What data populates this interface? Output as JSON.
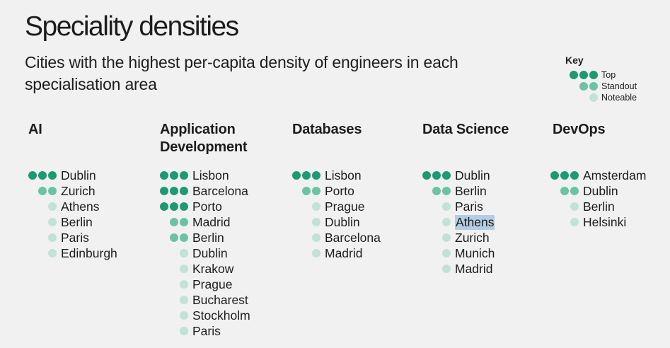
{
  "title": "Speciality densities",
  "subtitle": "Cities with the highest per-capita density of engineers in each specialisation area",
  "key": {
    "title": "Key",
    "items": [
      {
        "label": "Top",
        "level": 3
      },
      {
        "label": "Standout",
        "level": 2
      },
      {
        "label": "Noteable",
        "level": 1
      }
    ]
  },
  "colors": {
    "top": "#1c9a73",
    "standout": "#6cc3a4",
    "noteable": "#bfe3d4",
    "highlight": "#b5cde3"
  },
  "columns": [
    {
      "heading": "AI",
      "cities": [
        {
          "name": "Dublin",
          "level": 3
        },
        {
          "name": "Zurich",
          "level": 2
        },
        {
          "name": "Athens",
          "level": 1
        },
        {
          "name": "Berlin",
          "level": 1
        },
        {
          "name": "Paris",
          "level": 1
        },
        {
          "name": "Edinburgh",
          "level": 1
        }
      ]
    },
    {
      "heading": "Application Development",
      "cities": [
        {
          "name": "Lisbon",
          "level": 3
        },
        {
          "name": "Barcelona",
          "level": 3
        },
        {
          "name": "Porto",
          "level": 3
        },
        {
          "name": "Madrid",
          "level": 2
        },
        {
          "name": "Berlin",
          "level": 2
        },
        {
          "name": "Dublin",
          "level": 1
        },
        {
          "name": "Krakow",
          "level": 1
        },
        {
          "name": "Prague",
          "level": 1
        },
        {
          "name": "Bucharest",
          "level": 1
        },
        {
          "name": "Stockholm",
          "level": 1
        },
        {
          "name": "Paris",
          "level": 1
        }
      ]
    },
    {
      "heading": "Databases",
      "cities": [
        {
          "name": "Lisbon",
          "level": 3
        },
        {
          "name": "Porto",
          "level": 2
        },
        {
          "name": "Prague",
          "level": 1
        },
        {
          "name": "Dublin",
          "level": 1
        },
        {
          "name": "Barcelona",
          "level": 1
        },
        {
          "name": "Madrid",
          "level": 1
        }
      ]
    },
    {
      "heading": "Data Science",
      "cities": [
        {
          "name": "Dublin",
          "level": 3
        },
        {
          "name": "Berlin",
          "level": 2
        },
        {
          "name": "Paris",
          "level": 1
        },
        {
          "name": "Athens",
          "level": 1,
          "selected": true
        },
        {
          "name": "Zurich",
          "level": 1
        },
        {
          "name": "Munich",
          "level": 1
        },
        {
          "name": "Madrid",
          "level": 1
        }
      ]
    },
    {
      "heading": "DevOps",
      "cities": [
        {
          "name": "Amsterdam",
          "level": 3
        },
        {
          "name": "Dublin",
          "level": 2
        },
        {
          "name": "Berlin",
          "level": 1
        },
        {
          "name": "Helsinki",
          "level": 1
        }
      ]
    }
  ]
}
